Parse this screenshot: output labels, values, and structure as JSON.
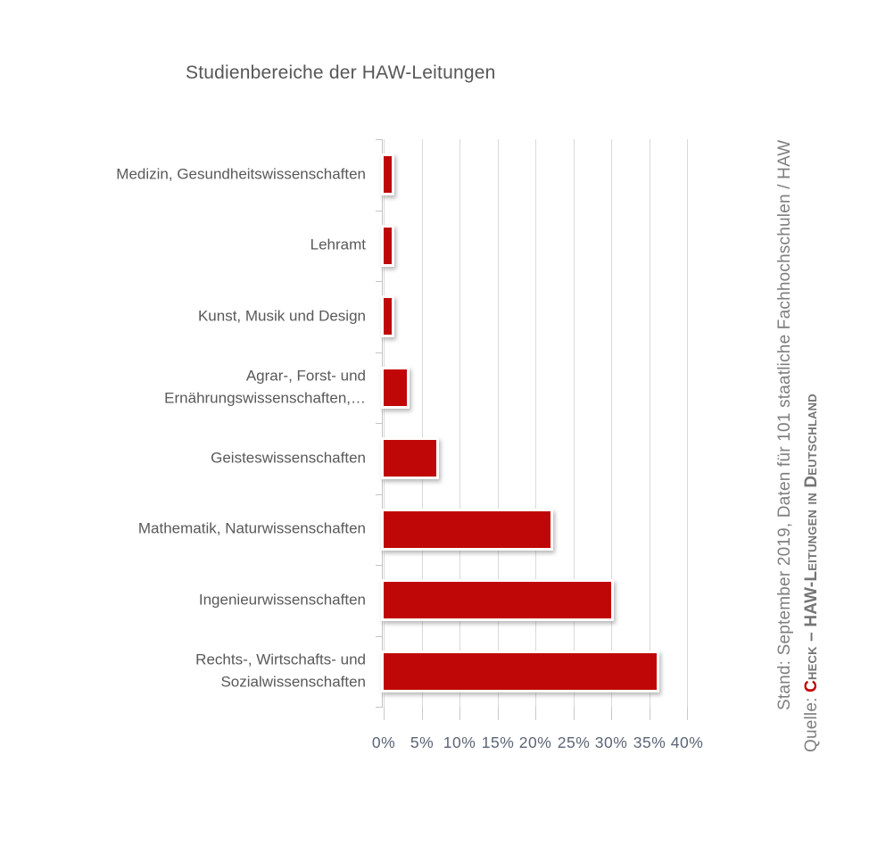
{
  "chart": {
    "title": "Studienbereiche der HAW-Leitungen"
  },
  "chart_data": {
    "type": "bar",
    "orientation": "horizontal",
    "title": "Studienbereiche der HAW-Leitungen",
    "categories": [
      "Medizin, Gesundheitswissenschaften",
      "Lehramt",
      "Kunst, Musik und Design",
      "Agrar-, Forst- und\nErnährungswissenschaften,…",
      "Geisteswissenschaften",
      "Mathematik, Naturwissenschaften",
      "Ingenieurwissenschaften",
      "Rechts-, Wirtschafts- und\nSozialwissenschaften"
    ],
    "values": [
      1,
      1,
      1,
      3,
      7,
      22,
      30,
      36
    ],
    "unit": "%",
    "xlabel": "",
    "ylabel": "",
    "xlim": [
      0,
      40
    ],
    "x_ticks": [
      "0%",
      "5%",
      "10%",
      "15%",
      "20%",
      "25%",
      "30%",
      "35%",
      "40%"
    ],
    "grid": true,
    "legend": "none",
    "bar_color": "#c00707"
  },
  "side": {
    "stand": "Stand: September 2019, Daten für 101 staatliche Fachhochschulen / HAW",
    "quelle_prefix": "Quelle: ",
    "source_initial": "C",
    "source_rest": "heck – HAW-Leitungen in Deutschland"
  },
  "colors": {
    "bar_red": "#c00707",
    "accent_red": "#c00000",
    "label_gray": "#595959",
    "axis_label_gray": "#5b6577",
    "source_gray": "#7f7f7f",
    "grid_gray": "#d9d9d9"
  }
}
